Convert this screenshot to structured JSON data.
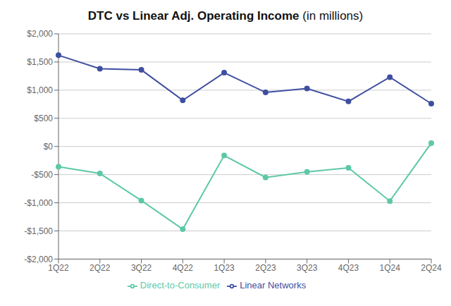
{
  "chart_data": {
    "type": "line",
    "title": "DTC vs Linear Adj. Operating Income",
    "subtitle": "(in millions)",
    "categories": [
      "1Q22",
      "2Q22",
      "3Q22",
      "4Q22",
      "1Q23",
      "2Q23",
      "3Q23",
      "4Q23",
      "1Q24",
      "2Q24"
    ],
    "series": [
      {
        "name": "Linear Networks",
        "color": "#3f4fa0",
        "marker": "circle",
        "values": [
          1620,
          1380,
          1360,
          820,
          1310,
          960,
          1030,
          800,
          1230,
          760
        ]
      },
      {
        "name": "Direct-to-Consumer",
        "color": "#5dc8a8",
        "marker": "circle",
        "values": [
          -360,
          -480,
          -960,
          -1470,
          -160,
          -550,
          -450,
          -380,
          -970,
          60
        ]
      }
    ],
    "ylim": [
      -2000,
      2000
    ],
    "yticks": [
      {
        "value": -2000,
        "label": "-$2,000"
      },
      {
        "value": -1500,
        "label": "-$1,500"
      },
      {
        "value": -1000,
        "label": "-$1,000"
      },
      {
        "value": -500,
        "label": "-$500"
      },
      {
        "value": 0,
        "label": "$0"
      },
      {
        "value": 500,
        "label": "$500"
      },
      {
        "value": 1000,
        "label": "$1,000"
      },
      {
        "value": 1500,
        "label": "$1,500"
      },
      {
        "value": 2000,
        "label": "$2,000"
      }
    ],
    "grid": true,
    "legend": "bottom"
  }
}
